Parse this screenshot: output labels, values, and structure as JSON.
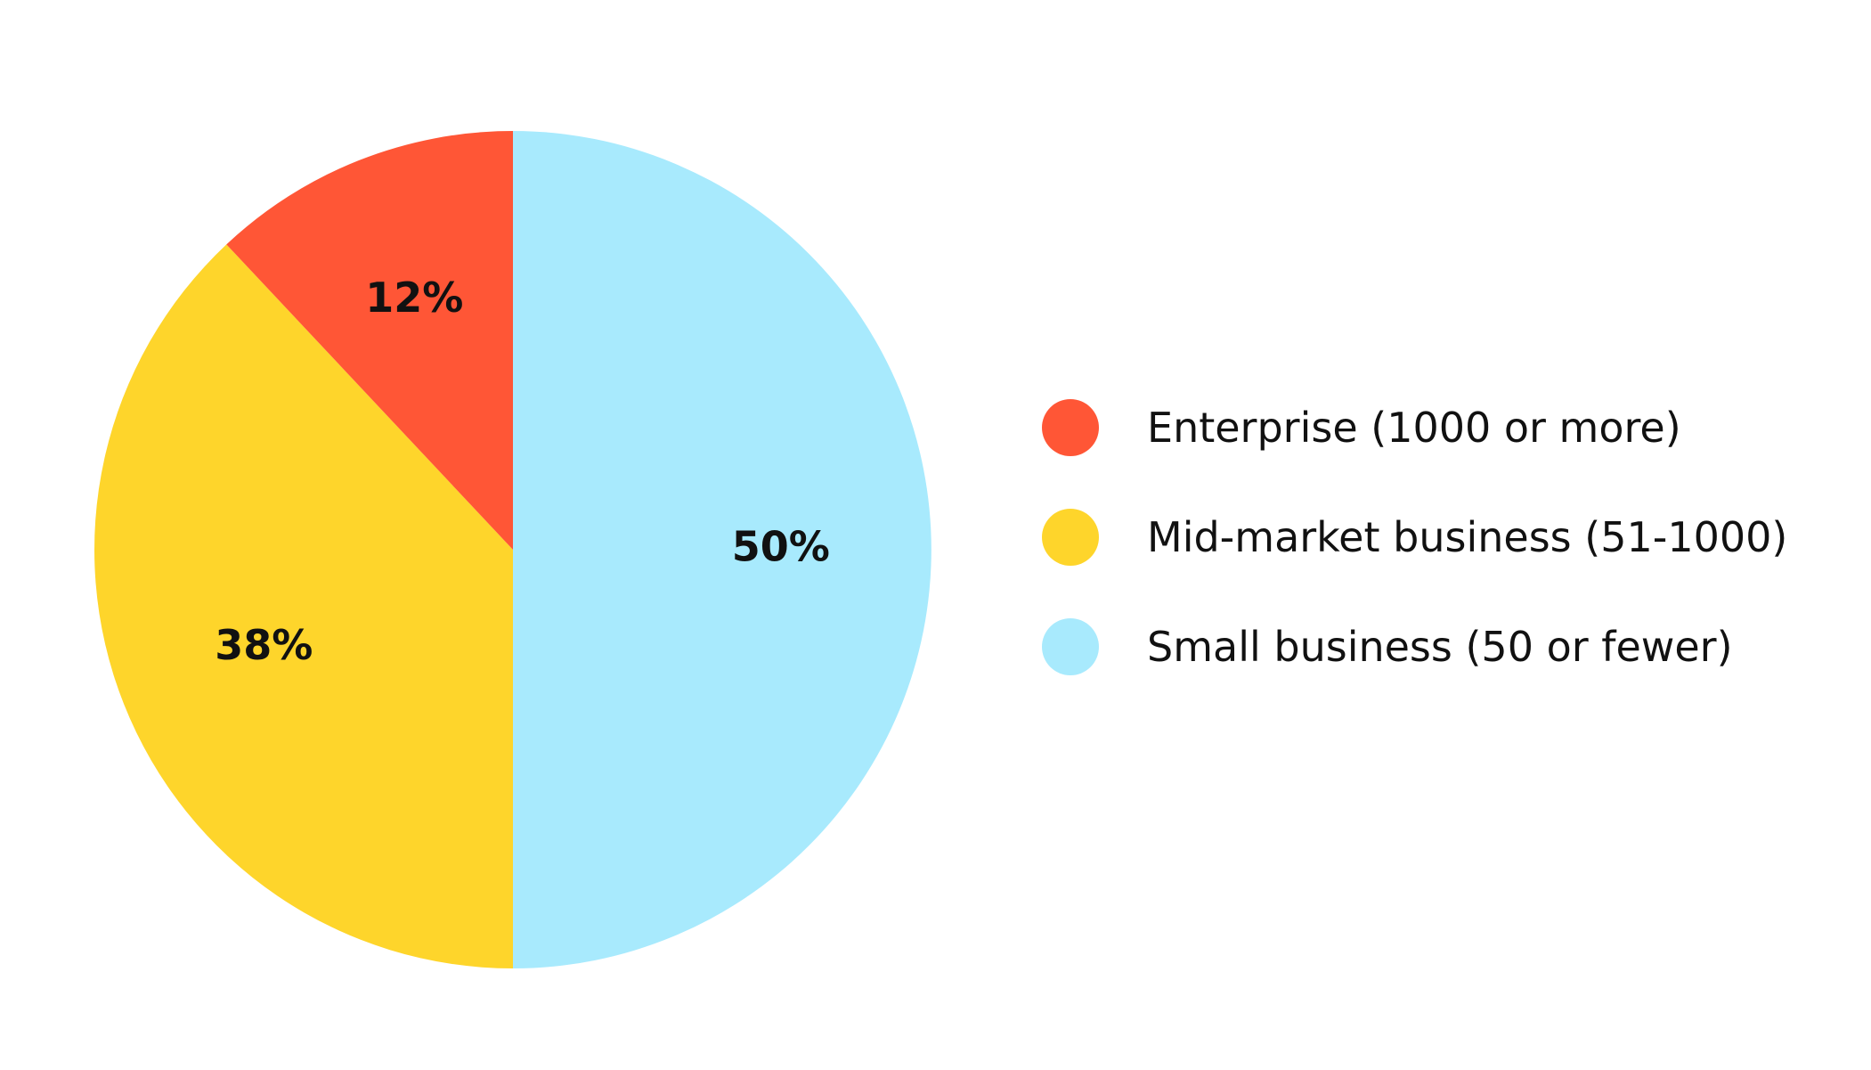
{
  "chart_data": {
    "type": "pie",
    "title": "",
    "start_angle_deg": 0,
    "direction": "counterclockwise",
    "legend_placement": "right",
    "slices": [
      {
        "label": "Small business (50 or fewer)",
        "value": 50,
        "value_label": "50%",
        "color": "#a8eafd"
      },
      {
        "label": "Mid-market business (51-1000)",
        "value": 38,
        "value_label": "38%",
        "color": "#fed52b"
      },
      {
        "label": "Enterprise (1000 or more)",
        "value": 12,
        "value_label": "12%",
        "color": "#ff5636"
      }
    ]
  },
  "legend": {
    "items": [
      {
        "label": "Enterprise (1000 or more)",
        "color": "#ff5636"
      },
      {
        "label": "Mid-market business (51-1000)",
        "color": "#fed52b"
      },
      {
        "label": "Small business (50 or fewer)",
        "color": "#a8eafd"
      }
    ]
  }
}
